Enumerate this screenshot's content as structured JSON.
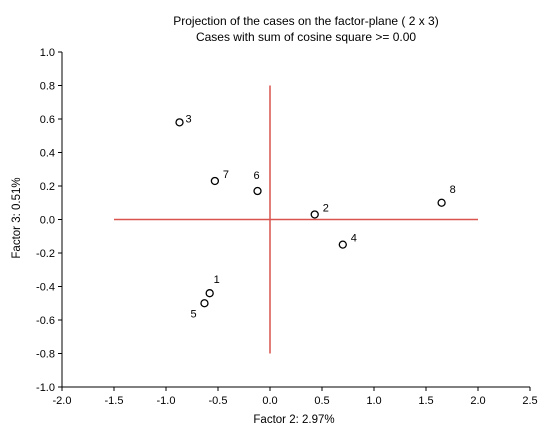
{
  "chart_data": {
    "type": "scatter",
    "title": "Projection of the cases on the factor-plane (  2 x   3)",
    "subtitle": "Cases with sum of cosine square >=  0.00",
    "xlabel": "Factor 2:  2.97%",
    "ylabel": "Factor 3:  0.51%",
    "xlim": [
      -2.0,
      2.5
    ],
    "ylim": [
      -1.0,
      1.0
    ],
    "x_ticks": [
      "-2.0",
      "-1.5",
      "-1.0",
      "-0.5",
      "0.0",
      "0.5",
      "1.0",
      "1.5",
      "2.0",
      "2.5"
    ],
    "y_ticks": [
      "1.0",
      "0.8",
      "0.6",
      "0.4",
      "0.2",
      "0.0",
      "-0.2",
      "-0.4",
      "-0.6",
      "-0.8",
      "-1.0"
    ],
    "grid": false,
    "reference_lines": {
      "horizontal": {
        "y": 0.0,
        "x_from": -1.5,
        "x_to": 2.0
      },
      "vertical": {
        "x": 0.0,
        "y_from": -0.8,
        "y_to": 0.8
      },
      "color": "#d9534f"
    },
    "points": [
      {
        "label": "1",
        "x": -0.58,
        "y": -0.44
      },
      {
        "label": "2",
        "x": 0.43,
        "y": 0.03
      },
      {
        "label": "3",
        "x": -0.87,
        "y": 0.58
      },
      {
        "label": "4",
        "x": 0.7,
        "y": -0.15
      },
      {
        "label": "5",
        "x": -0.63,
        "y": -0.5
      },
      {
        "label": "6",
        "x": -0.12,
        "y": 0.17
      },
      {
        "label": "7",
        "x": -0.53,
        "y": 0.23
      },
      {
        "label": "8",
        "x": 1.65,
        "y": 0.1
      }
    ]
  }
}
